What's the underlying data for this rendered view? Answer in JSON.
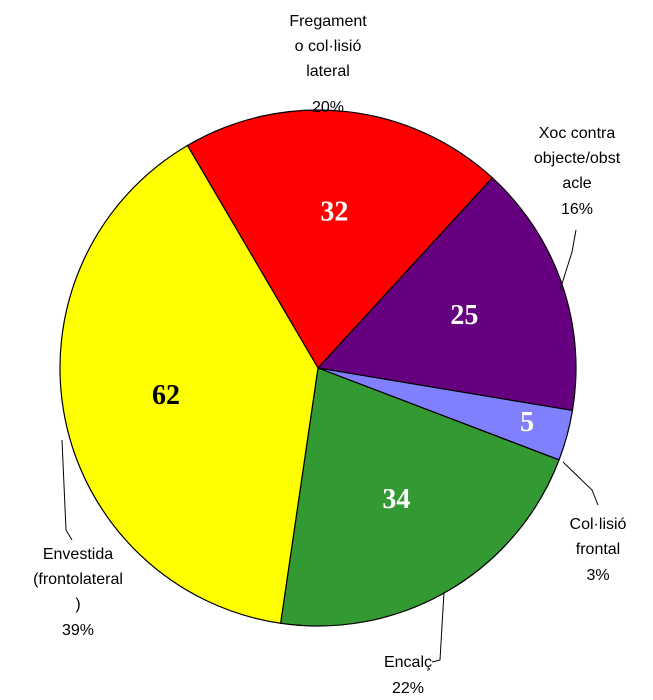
{
  "chart_data": {
    "type": "pie",
    "categories": [
      [
        "Fregament",
        "o col·lisió",
        "lateral"
      ],
      [
        "Xoc contra",
        "objecte/obst",
        "acle"
      ],
      [
        "Col·lisió",
        "frontal"
      ],
      [
        "Encalç"
      ],
      [
        "Envestida",
        "(frontolateral",
        ")"
      ]
    ],
    "values": [
      32,
      25,
      5,
      34,
      62
    ],
    "value_labels": [
      "20%",
      "16%",
      "3%",
      "22%",
      "39%"
    ],
    "colors": [
      "#ff0000",
      "#660080",
      "#8080ff",
      "#339933",
      "#ffff00"
    ],
    "label_colors": [
      "#ffffff",
      "#ffffff",
      "#ffffff",
      "#ffffff",
      "#000000"
    ]
  }
}
